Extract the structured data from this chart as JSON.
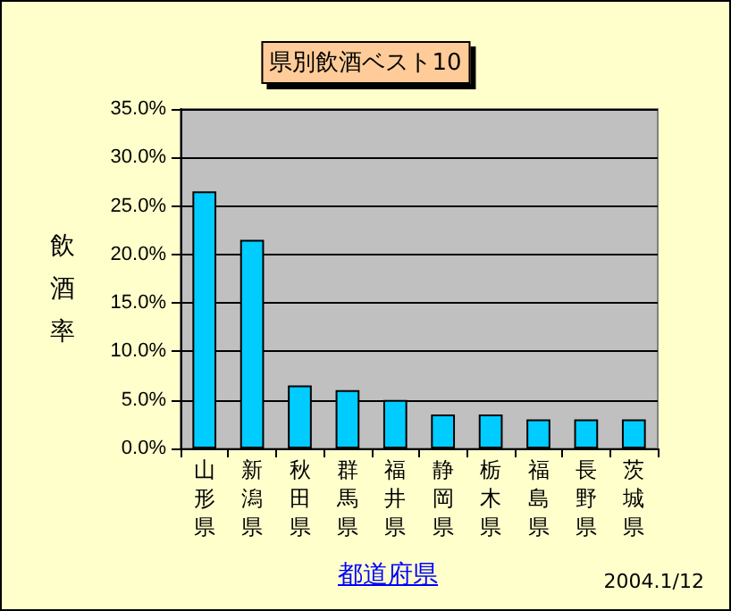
{
  "chart_data": {
    "type": "bar",
    "title": "県別飲酒ベスト10",
    "xlabel": "都道府県",
    "ylabel": "飲酒率",
    "categories": [
      "山形県",
      "新潟県",
      "秋田県",
      "群馬県",
      "福井県",
      "静岡県",
      "栃木県",
      "福島県",
      "長野県",
      "茨城県"
    ],
    "values": [
      26.5,
      21.5,
      6.5,
      6.0,
      5.0,
      3.5,
      3.5,
      3.0,
      3.0,
      3.0
    ],
    "color": "#00ccff",
    "ylim": [
      0,
      35
    ],
    "yticks": [
      {
        "value": 0,
        "label": "0.0%"
      },
      {
        "value": 5,
        "label": "5.0%"
      },
      {
        "value": 10,
        "label": "10.0%"
      },
      {
        "value": 15,
        "label": "15.0%"
      },
      {
        "value": 20,
        "label": "20.0%"
      },
      {
        "value": 25,
        "label": "25.0%"
      },
      {
        "value": 30,
        "label": "30.0%"
      },
      {
        "value": 35,
        "label": "35.0%"
      }
    ],
    "grid": "y",
    "annotations": [
      "2004.1/12"
    ]
  }
}
